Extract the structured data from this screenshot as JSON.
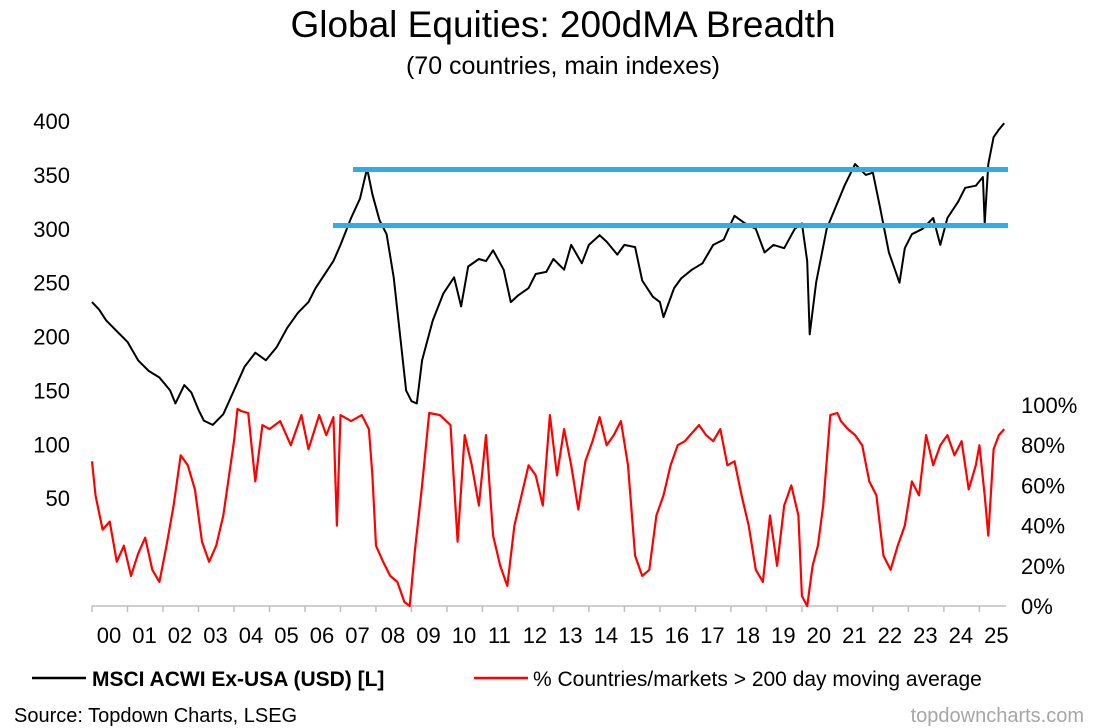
{
  "chart_data": {
    "type": "line",
    "title": "Global Equities: 200dMA Breadth",
    "subtitle": "(70 countries, main indexes)",
    "x_tick_labels": [
      "00",
      "01",
      "02",
      "03",
      "04",
      "05",
      "06",
      "07",
      "08",
      "09",
      "10",
      "11",
      "12",
      "13",
      "14",
      "15",
      "16",
      "17",
      "18",
      "19",
      "20",
      "21",
      "22",
      "23",
      "24",
      "25"
    ],
    "x_range": [
      2000,
      2025.75
    ],
    "left_axis": {
      "tick_labels": [
        "400",
        "350",
        "300",
        "250",
        "200",
        "150",
        "100",
        "50"
      ],
      "tick_values": [
        400,
        350,
        300,
        250,
        200,
        150,
        100,
        50
      ],
      "range": [
        -50,
        400
      ]
    },
    "right_axis": {
      "tick_labels": [
        "100%",
        "80%",
        "60%",
        "40%",
        "20%",
        "0%"
      ],
      "tick_values": [
        100,
        80,
        60,
        40,
        20,
        0
      ],
      "range": [
        0,
        100
      ]
    },
    "series": [
      {
        "name": "MSCI ACWI Ex-USA (USD) [L]",
        "axis": "left",
        "color": "#000000",
        "x": [
          2000.0,
          2000.2,
          2000.4,
          2000.7,
          2001.0,
          2001.3,
          2001.6,
          2001.9,
          2002.2,
          2002.35,
          2002.6,
          2002.8,
          2003.0,
          2003.15,
          2003.4,
          2003.7,
          2004.0,
          2004.3,
          2004.6,
          2004.9,
          2005.2,
          2005.5,
          2005.8,
          2006.1,
          2006.3,
          2006.5,
          2006.8,
          2007.0,
          2007.3,
          2007.55,
          2007.75,
          2007.9,
          2008.1,
          2008.3,
          2008.5,
          2008.7,
          2008.85,
          2009.0,
          2009.15,
          2009.3,
          2009.6,
          2009.9,
          2010.2,
          2010.4,
          2010.6,
          2010.9,
          2011.1,
          2011.3,
          2011.6,
          2011.8,
          2012.0,
          2012.3,
          2012.5,
          2012.8,
          2013.0,
          2013.3,
          2013.5,
          2013.8,
          2014.0,
          2014.3,
          2014.5,
          2014.8,
          2015.0,
          2015.3,
          2015.5,
          2015.8,
          2016.0,
          2016.1,
          2016.4,
          2016.6,
          2016.9,
          2017.2,
          2017.5,
          2017.8,
          2018.0,
          2018.1,
          2018.4,
          2018.7,
          2018.95,
          2019.2,
          2019.5,
          2019.8,
          2020.0,
          2020.15,
          2020.22,
          2020.4,
          2020.7,
          2020.95,
          2021.2,
          2021.5,
          2021.8,
          2022.0,
          2022.2,
          2022.45,
          2022.75,
          2022.9,
          2023.1,
          2023.4,
          2023.7,
          2023.9,
          2024.1,
          2024.4,
          2024.6,
          2024.9,
          2025.1,
          2025.15,
          2025.25,
          2025.4,
          2025.55,
          2025.7
        ],
        "values": [
          232,
          225,
          215,
          205,
          195,
          178,
          168,
          162,
          150,
          138,
          155,
          148,
          132,
          122,
          118,
          128,
          150,
          172,
          185,
          178,
          190,
          208,
          222,
          232,
          245,
          255,
          270,
          285,
          310,
          328,
          356,
          332,
          308,
          295,
          255,
          195,
          150,
          140,
          138,
          178,
          215,
          240,
          255,
          228,
          265,
          272,
          270,
          280,
          262,
          232,
          238,
          245,
          258,
          260,
          272,
          262,
          285,
          268,
          285,
          294,
          288,
          276,
          285,
          283,
          252,
          237,
          232,
          218,
          245,
          254,
          262,
          268,
          285,
          290,
          305,
          312,
          305,
          300,
          278,
          285,
          282,
          300,
          305,
          270,
          202,
          250,
          300,
          320,
          340,
          360,
          350,
          352,
          320,
          278,
          250,
          282,
          295,
          300,
          310,
          285,
          310,
          325,
          338,
          340,
          348,
          305,
          360,
          385,
          392,
          398
        ]
      },
      {
        "name": "% Countries/markets > 200 day moving average",
        "axis": "right",
        "color": "#ff0000",
        "x": [
          2000.0,
          2000.1,
          2000.3,
          2000.5,
          2000.7,
          2000.9,
          2001.1,
          2001.3,
          2001.5,
          2001.7,
          2001.9,
          2002.1,
          2002.3,
          2002.5,
          2002.7,
          2002.9,
          2003.1,
          2003.3,
          2003.5,
          2003.7,
          2004.0,
          2004.1,
          2004.2,
          2004.4,
          2004.6,
          2004.8,
          2005.0,
          2005.3,
          2005.6,
          2005.9,
          2006.1,
          2006.4,
          2006.6,
          2006.8,
          2006.9,
          2007.0,
          2007.3,
          2007.6,
          2007.8,
          2007.9,
          2008.0,
          2008.2,
          2008.4,
          2008.6,
          2008.8,
          2008.95,
          2009.1,
          2009.3,
          2009.5,
          2009.8,
          2010.1,
          2010.3,
          2010.5,
          2010.7,
          2010.9,
          2011.1,
          2011.3,
          2011.5,
          2011.7,
          2011.9,
          2012.1,
          2012.3,
          2012.5,
          2012.7,
          2012.9,
          2013.1,
          2013.3,
          2013.5,
          2013.7,
          2013.9,
          2014.1,
          2014.3,
          2014.5,
          2014.7,
          2014.9,
          2015.1,
          2015.3,
          2015.5,
          2015.7,
          2015.9,
          2016.1,
          2016.3,
          2016.5,
          2016.7,
          2016.9,
          2017.1,
          2017.3,
          2017.5,
          2017.7,
          2017.9,
          2018.1,
          2018.3,
          2018.5,
          2018.7,
          2018.9,
          2019.1,
          2019.3,
          2019.5,
          2019.7,
          2019.9,
          2020.0,
          2020.15,
          2020.3,
          2020.45,
          2020.6,
          2020.8,
          2021.0,
          2021.1,
          2021.3,
          2021.5,
          2021.7,
          2021.9,
          2022.1,
          2022.3,
          2022.5,
          2022.7,
          2022.9,
          2023.1,
          2023.3,
          2023.5,
          2023.7,
          2023.9,
          2024.1,
          2024.3,
          2024.5,
          2024.7,
          2024.9,
          2025.0,
          2025.15,
          2025.25,
          2025.4,
          2025.55,
          2025.7
        ],
        "values": [
          72,
          55,
          38,
          42,
          22,
          30,
          15,
          26,
          34,
          18,
          12,
          30,
          50,
          75,
          70,
          58,
          32,
          22,
          30,
          45,
          82,
          98,
          97,
          96,
          62,
          90,
          88,
          92,
          80,
          95,
          78,
          95,
          85,
          94,
          40,
          95,
          92,
          95,
          88,
          65,
          30,
          22,
          15,
          12,
          2,
          0,
          28,
          60,
          96,
          95,
          90,
          32,
          85,
          70,
          50,
          85,
          35,
          20,
          10,
          40,
          55,
          70,
          65,
          50,
          95,
          65,
          88,
          70,
          48,
          72,
          82,
          94,
          80,
          85,
          92,
          70,
          25,
          15,
          18,
          45,
          55,
          70,
          80,
          82,
          86,
          90,
          85,
          82,
          88,
          70,
          72,
          55,
          40,
          18,
          12,
          45,
          20,
          50,
          60,
          45,
          5,
          0,
          20,
          30,
          50,
          95,
          96,
          92,
          88,
          85,
          80,
          62,
          55,
          25,
          18,
          30,
          40,
          62,
          55,
          85,
          70,
          80,
          85,
          75,
          82,
          58,
          70,
          80,
          55,
          35,
          78,
          85,
          88
        ]
      }
    ]
  },
  "annotations": {
    "upper_line_value": 355,
    "lower_line_value": 303,
    "color": "#2eaee3"
  },
  "legend": {
    "series1_label": "MSCI ACWI Ex-USA (USD) [L]",
    "series2_label": "% Countries/markets > 200 day moving average"
  },
  "source": "Source: Topdown Charts, LSEG",
  "watermark": "topdowncharts.com"
}
